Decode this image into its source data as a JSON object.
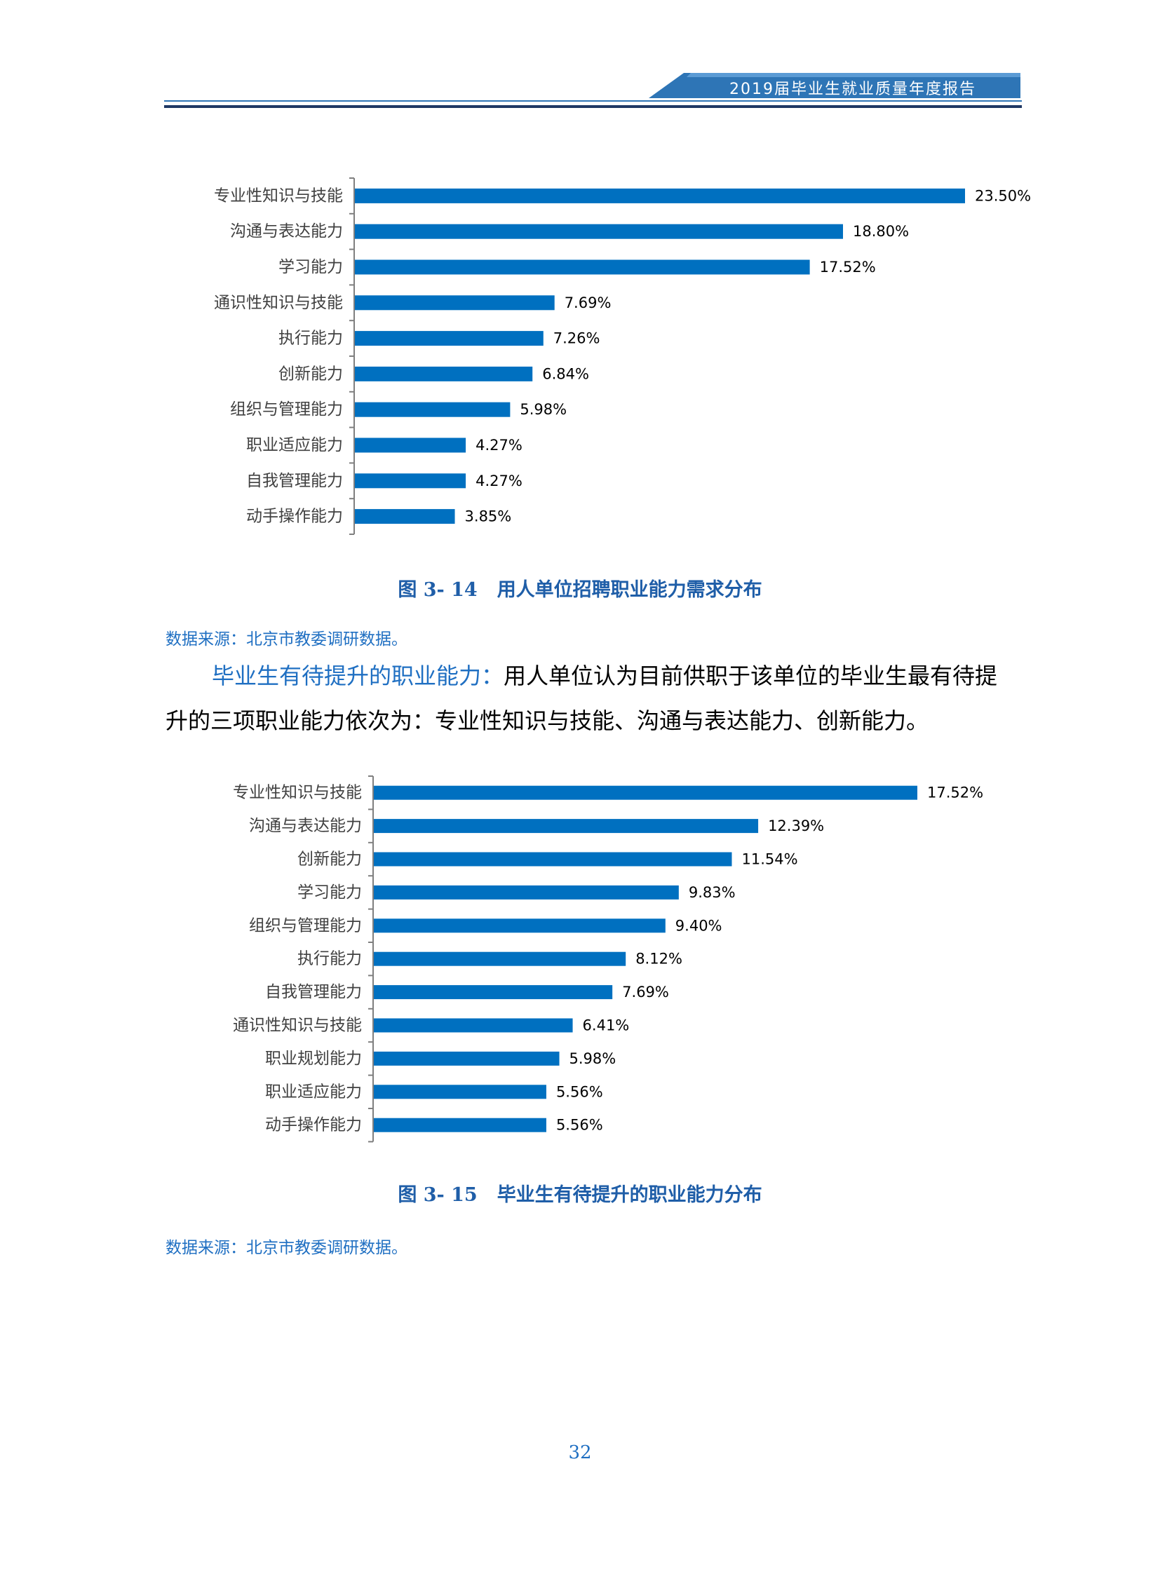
{
  "header": {
    "title": "2019届毕业生就业质量年度报告"
  },
  "colors": {
    "bar": "#0070c0",
    "accent": "#1f6fc2",
    "banner": "#2e75b6"
  },
  "chart_data": [
    {
      "type": "bar",
      "orientation": "horizontal",
      "categories": [
        "专业性知识与技能",
        "沟通与表达能力",
        "学习能力",
        "通识性知识与技能",
        "执行能力",
        "创新能力",
        "组织与管理能力",
        "职业适应能力",
        "自我管理能力",
        "动手操作能力"
      ],
      "values": [
        23.5,
        18.8,
        17.52,
        7.69,
        7.26,
        6.84,
        5.98,
        4.27,
        4.27,
        3.85
      ],
      "value_labels": [
        "23.50%",
        "18.80%",
        "17.52%",
        "7.69%",
        "7.26%",
        "6.84%",
        "5.98%",
        "4.27%",
        "4.27%",
        "3.85%"
      ],
      "title": "",
      "xlabel": "",
      "ylabel": "",
      "xlim": [
        0,
        23.5
      ],
      "grid": false,
      "legend": "none"
    },
    {
      "type": "bar",
      "orientation": "horizontal",
      "categories": [
        "专业性知识与技能",
        "沟通与表达能力",
        "创新能力",
        "学习能力",
        "组织与管理能力",
        "执行能力",
        "自我管理能力",
        "通识性知识与技能",
        "职业规划能力",
        "职业适应能力",
        "动手操作能力"
      ],
      "values": [
        17.52,
        12.39,
        11.54,
        9.83,
        9.4,
        8.12,
        7.69,
        6.41,
        5.98,
        5.56,
        5.56
      ],
      "value_labels": [
        "17.52%",
        "12.39%",
        "11.54%",
        "9.83%",
        "9.40%",
        "8.12%",
        "7.69%",
        "6.41%",
        "5.98%",
        "5.56%",
        "5.56%"
      ],
      "title": "",
      "xlabel": "",
      "ylabel": "",
      "xlim": [
        0,
        17.52
      ],
      "grid": false,
      "legend": "none"
    }
  ],
  "figure1": {
    "number": "图 3- 14",
    "caption": "用人单位招聘职业能力需求分布",
    "source": "数据来源：北京市教委调研数据。"
  },
  "paragraph": {
    "lead": "毕业生有待提升的职业能力：",
    "text": "用人单位认为目前供职于该单位的毕业生最有待提升的三项职业能力依次为：专业性知识与技能、沟通与表达能力、创新能力。"
  },
  "figure2": {
    "number": "图 3- 15",
    "caption": "毕业生有待提升的职业能力分布",
    "source": "数据来源：北京市教委调研数据。"
  },
  "page_number": "32"
}
